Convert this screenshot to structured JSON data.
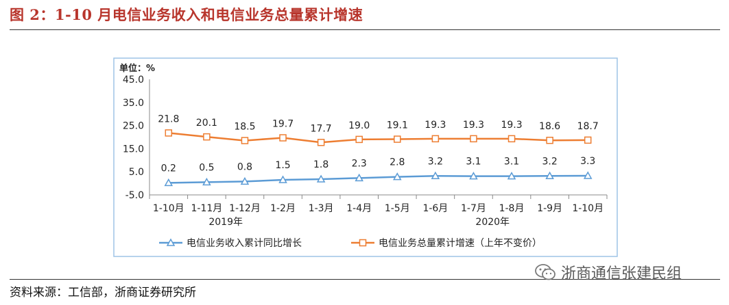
{
  "header": {
    "figure_title": "图 2：1-10 月电信业务收入和电信业务总量累计增速"
  },
  "footer": {
    "source": "资料来源：工信部，浙商证券研究所",
    "watermark": "浙商通信张建民组",
    "watermark_icon": "wechat-icon"
  },
  "chart_data": {
    "type": "line",
    "unit_label": "单位：%",
    "categories": [
      "1-10月",
      "1-11月",
      "1-12月",
      "1-2月",
      "1-3月",
      "1-4月",
      "1-5月",
      "1-6月",
      "1-7月",
      "1-8月",
      "1-9月",
      "1-10月"
    ],
    "year_labels": [
      {
        "label": "2019年",
        "index": 1.5
      },
      {
        "label": "2020年",
        "index": 8.5
      }
    ],
    "ylim": [
      -5.0,
      45.0
    ],
    "yticks": [
      "45.0",
      "35.0",
      "25.0",
      "15.0",
      "5.0",
      "-5.0"
    ],
    "yticks_values": [
      45,
      35,
      25,
      15,
      5,
      -5
    ],
    "grid": false,
    "legend_position": "bottom",
    "series": [
      {
        "name": "电信业务收入累计同比增长",
        "marker": "triangle",
        "color": "#5b9bd5",
        "values": [
          0.2,
          0.5,
          0.8,
          1.5,
          1.8,
          2.3,
          2.8,
          3.2,
          3.1,
          3.1,
          3.2,
          3.3
        ],
        "labels": [
          "0.2",
          "0.5",
          "0.8",
          "1.5",
          "1.8",
          "2.3",
          "2.8",
          "3.2",
          "3.1",
          "3.1",
          "3.2",
          "3.3"
        ]
      },
      {
        "name": "电信业务总量累计增速（上年不变价）",
        "marker": "square",
        "color": "#ed7d31",
        "values": [
          21.8,
          20.1,
          18.5,
          19.7,
          17.7,
          19.0,
          19.1,
          19.3,
          19.3,
          19.3,
          18.6,
          18.7
        ],
        "labels": [
          "21.8",
          "20.1",
          "18.5",
          "19.7",
          "17.7",
          "19.0",
          "19.1",
          "19.3",
          "19.3",
          "19.3",
          "18.6",
          "18.7"
        ]
      }
    ]
  }
}
